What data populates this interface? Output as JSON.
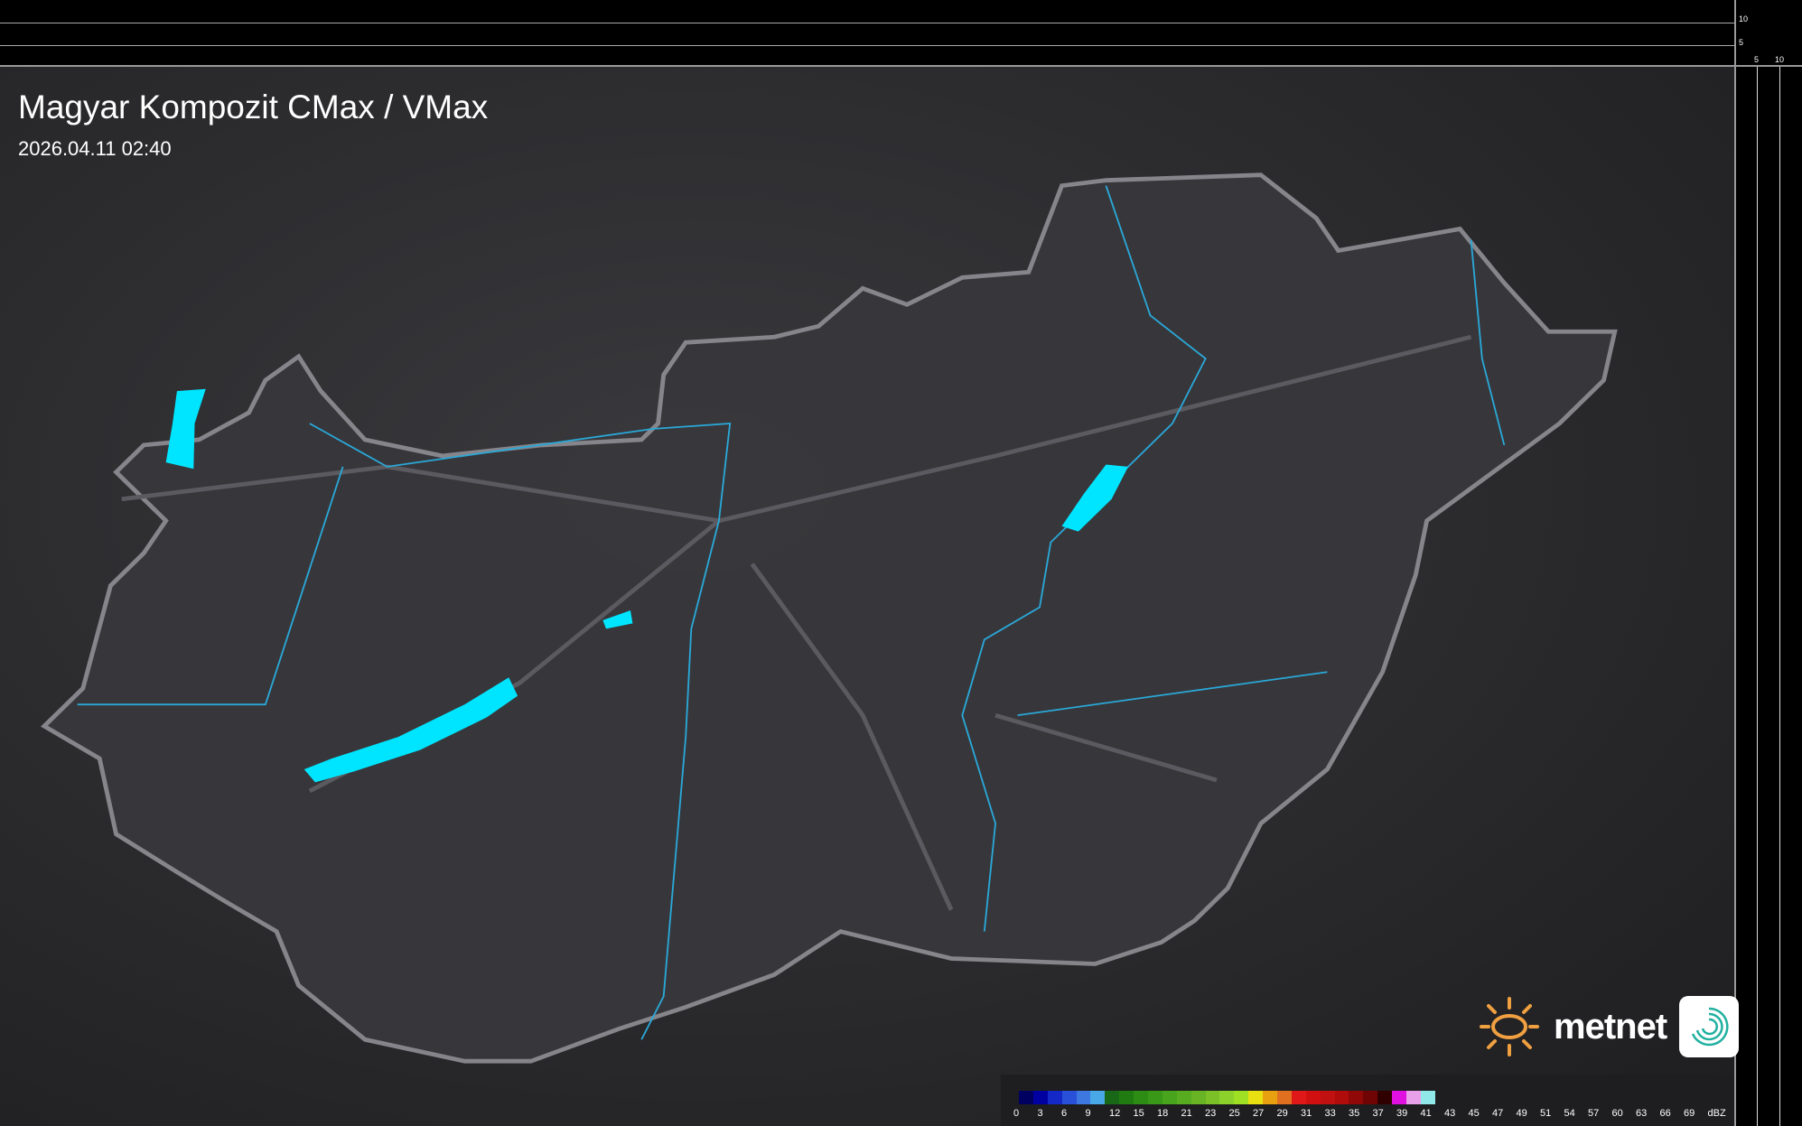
{
  "title": "Magyar Kompozit CMax / VMax",
  "datetime": "2026.04.11 02:40",
  "axes": {
    "vertical_labels": [
      "10",
      "5"
    ],
    "horizontal_labels": [
      "5",
      "10"
    ]
  },
  "logo": {
    "text": "metnet",
    "sun_color": "#f0a040",
    "icon_color": "#20b0a0"
  },
  "water_color": "#00e5ff",
  "legend": {
    "unit": "dBZ",
    "labels": [
      "0",
      "3",
      "6",
      "9",
      "12",
      "15",
      "18",
      "21",
      "23",
      "25",
      "27",
      "29",
      "31",
      "33",
      "35",
      "37",
      "39",
      "41",
      "43",
      "45",
      "47",
      "49",
      "51",
      "54",
      "57",
      "60",
      "63",
      "66",
      "69"
    ],
    "colors": [
      "#000060",
      "#0000a0",
      "#1428c8",
      "#2850d8",
      "#3c78e0",
      "#48a8e8",
      "#186818",
      "#207c10",
      "#2c8c14",
      "#3a9818",
      "#48a41c",
      "#58ac20",
      "#68b424",
      "#7cc028",
      "#8cd02c",
      "#a0e024",
      "#e8e010",
      "#e8a010",
      "#e07020",
      "#e01818",
      "#d01010",
      "#c01010",
      "#b00c0c",
      "#900808",
      "#700404",
      "#300000",
      "#e010e0",
      "#e8a0e8",
      "#90e8e8"
    ]
  }
}
